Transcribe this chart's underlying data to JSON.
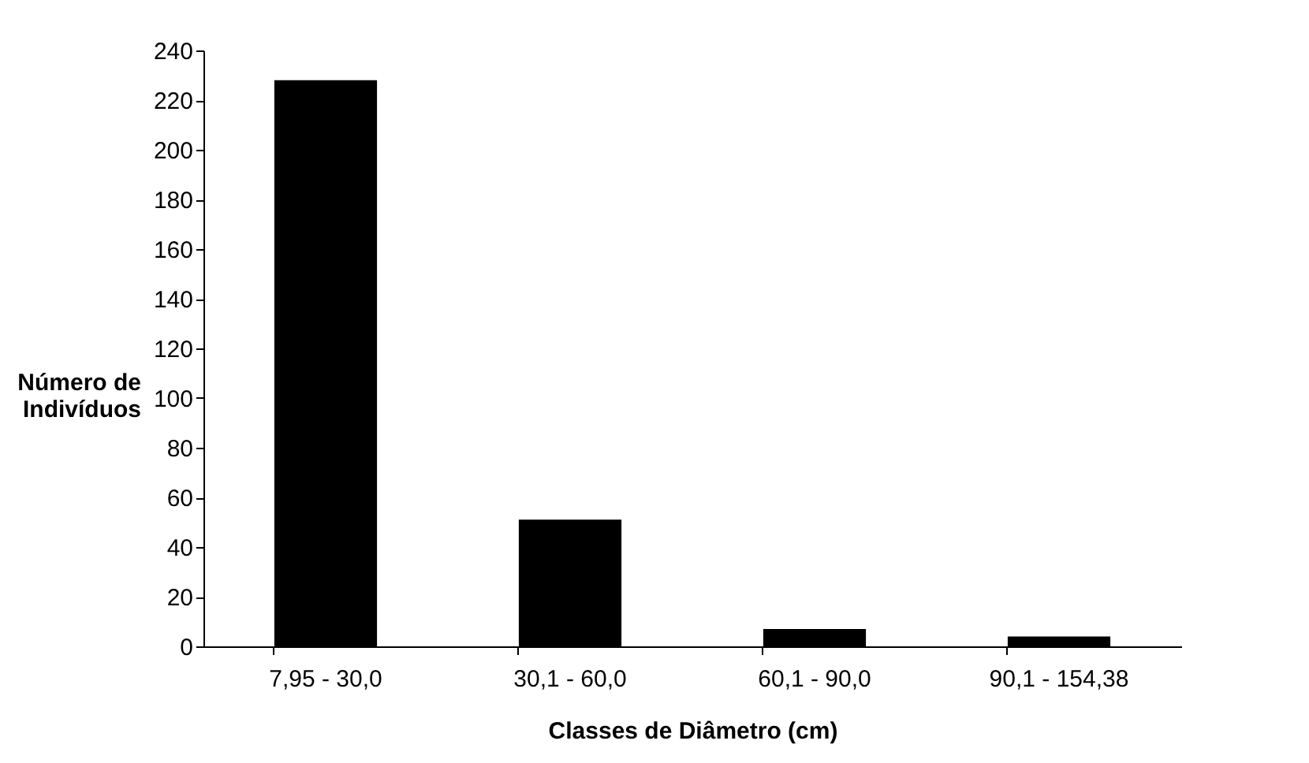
{
  "chart_data": {
    "type": "bar",
    "xlabel": "Classes de Diâmetro (cm)",
    "ylabel": "Número de Indivíduos",
    "categories": [
      "7,95 - 30,0",
      "30,1 - 60,0",
      "60,1 - 90,0",
      "90,1 - 154,38"
    ],
    "values": [
      228,
      51,
      7,
      4
    ],
    "color": "#000000",
    "ylim": [
      0,
      240
    ],
    "yticks": [
      0,
      20,
      40,
      60,
      80,
      100,
      120,
      140,
      160,
      180,
      200,
      220,
      240
    ],
    "grid": false
  }
}
